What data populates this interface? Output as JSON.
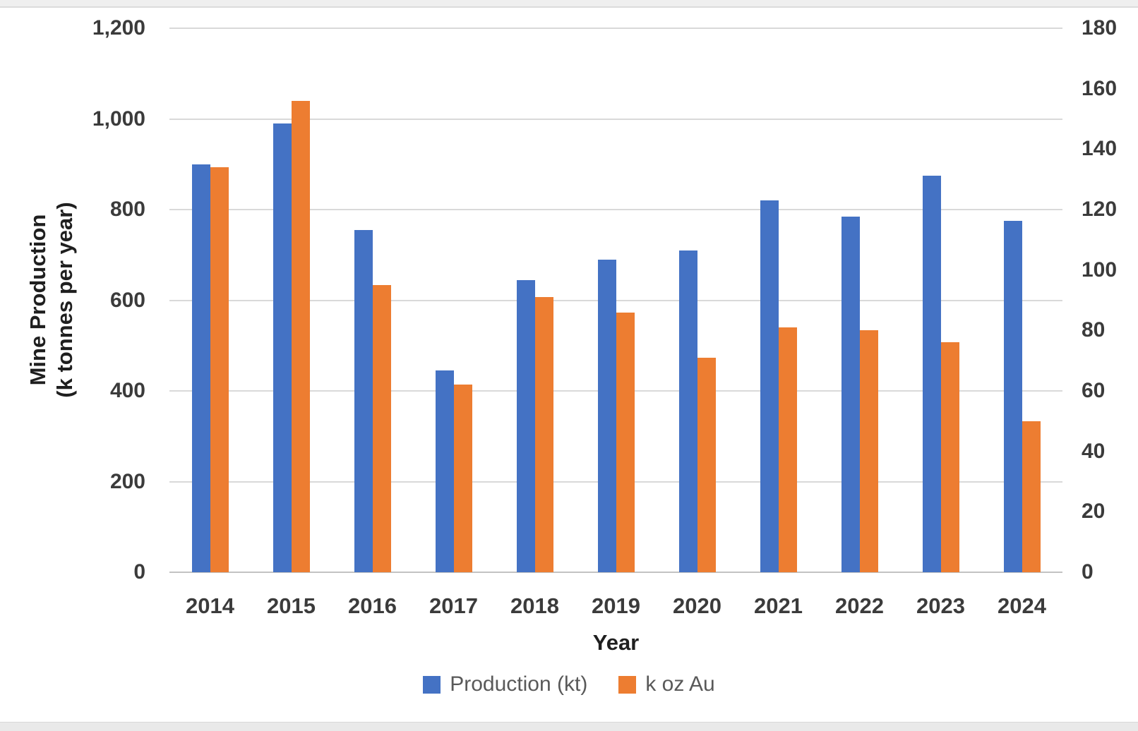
{
  "chart_data": {
    "type": "bar",
    "categories": [
      "2014",
      "2015",
      "2016",
      "2017",
      "2018",
      "2019",
      "2020",
      "2021",
      "2022",
      "2023",
      "2024"
    ],
    "series": [
      {
        "name": "Production (kt)",
        "axis": "left",
        "color": "#4472C4",
        "values": [
          900,
          990,
          755,
          445,
          645,
          690,
          710,
          820,
          785,
          875,
          775
        ]
      },
      {
        "name": "k oz Au",
        "axis": "right",
        "color": "#ED7D31",
        "values": [
          134,
          156,
          95,
          62,
          91,
          86,
          71,
          81,
          80,
          76,
          50
        ]
      }
    ],
    "x_axis": {
      "title": "Year"
    },
    "y_axis_left": {
      "title_line1": "Mine Production",
      "title_line2": "(k tonnes per year)",
      "min": 0,
      "max": 1200,
      "tick_values": [
        1200,
        1000,
        800,
        600,
        400,
        200,
        0
      ],
      "tick_labels": [
        "1,200",
        "1,000",
        "800",
        "600",
        "400",
        "200",
        "0"
      ]
    },
    "y_axis_right": {
      "min": 0,
      "max": 180,
      "tick_values": [
        180,
        160,
        140,
        120,
        100,
        80,
        60,
        40,
        20,
        0
      ],
      "tick_labels": [
        "180",
        "160",
        "140",
        "120",
        "100",
        "80",
        "60",
        "40",
        "20",
        "0"
      ]
    },
    "legend": {
      "position": "bottom",
      "entries": [
        "Production (kt)",
        "k oz Au"
      ]
    },
    "grid": true,
    "gridline_color": "#d9d9d9"
  }
}
